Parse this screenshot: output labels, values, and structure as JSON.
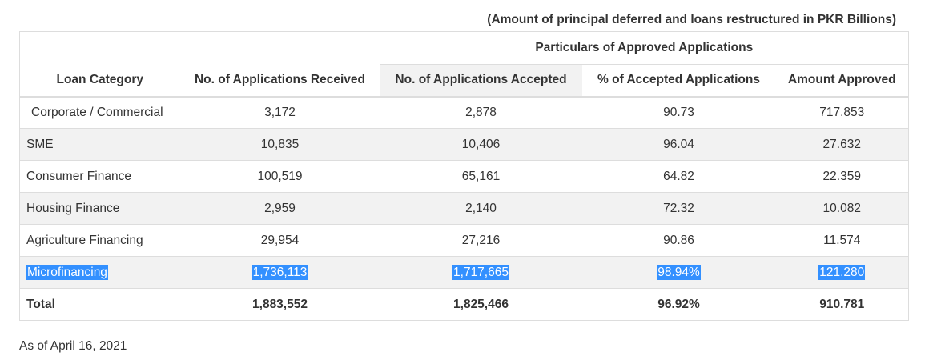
{
  "caption": "(Amount of principal deferred and loans restructured in PKR Billions)",
  "table": {
    "group_header": "Particulars of Approved Applications",
    "columns": {
      "category": "Loan Category",
      "received": "No. of Applications Received",
      "accepted": "No. of Applications Accepted",
      "pct_accepted": "% of Accepted Applications",
      "amount": "Amount Approved"
    },
    "rows": [
      {
        "category": " Corporate / Commercial",
        "received": "3,172",
        "accepted": "2,878",
        "pct_accepted": "90.73",
        "amount": "717.853"
      },
      {
        "category": "SME",
        "received": "10,835",
        "accepted": "10,406",
        "pct_accepted": "96.04",
        "amount": "27.632"
      },
      {
        "category": "Consumer Finance",
        "received": "100,519",
        "accepted": "65,161",
        "pct_accepted": "64.82",
        "amount": "22.359"
      },
      {
        "category": "Housing Finance",
        "received": "2,959",
        "accepted": "2,140",
        "pct_accepted": "72.32",
        "amount": "10.082"
      },
      {
        "category": "Agriculture Financing",
        "received": "29,954",
        "accepted": "27,216",
        "pct_accepted": "90.86",
        "amount": "11.574"
      },
      {
        "category": "Microfinancing",
        "received": "1,736,113",
        "accepted": "1,717,665",
        "pct_accepted": "98.94%",
        "amount": "121.280"
      }
    ],
    "total": {
      "category": "Total",
      "received": "1,883,552",
      "accepted": "1,825,466",
      "pct_accepted": "96.92%",
      "amount": "910.781"
    }
  },
  "footnote": "As of April 16, 2021",
  "colors": {
    "selection_highlight": "#3390ff",
    "alt_row": "#f2f2f2",
    "border": "#dddddd"
  }
}
